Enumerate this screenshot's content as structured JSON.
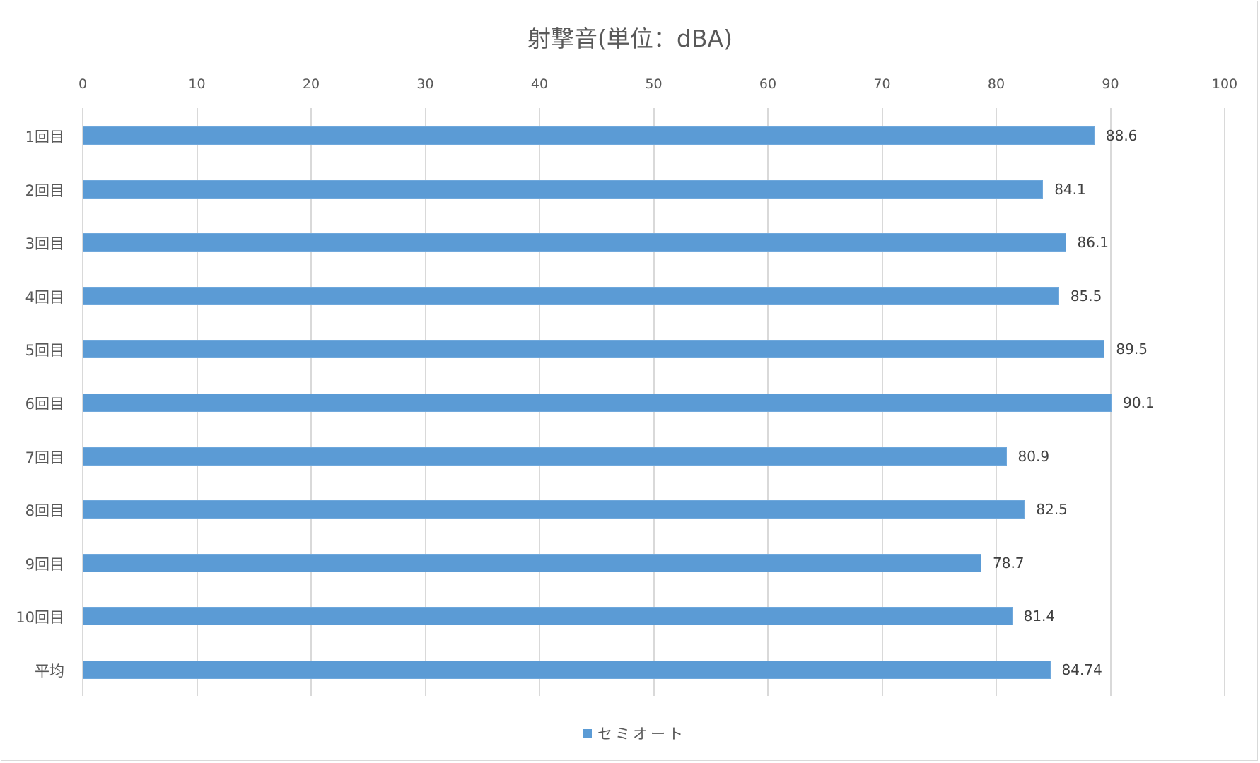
{
  "chart_data": {
    "type": "bar",
    "orientation": "horizontal",
    "title": "射撃音(単位：dBA)",
    "xlabel": "",
    "ylabel": "",
    "xlim": [
      0,
      100
    ],
    "x_ticks": [
      "0",
      "10",
      "20",
      "30",
      "40",
      "50",
      "60",
      "70",
      "80",
      "90",
      "100"
    ],
    "categories": [
      "1回目",
      "2回目",
      "3回目",
      "4回目",
      "5回目",
      "6回目",
      "7回目",
      "8回目",
      "9回目",
      "10回目",
      "平均"
    ],
    "series": [
      {
        "name": "セミオート",
        "color": "#5b9bd5",
        "values": [
          88.6,
          84.1,
          86.1,
          85.5,
          89.5,
          90.1,
          80.9,
          82.5,
          78.7,
          81.4,
          84.74
        ],
        "labels": [
          "88.6",
          "84.1",
          "86.1",
          "85.5",
          "89.5",
          "90.1",
          "80.9",
          "82.5",
          "78.7",
          "81.4",
          "84.74"
        ]
      }
    ],
    "grid": true,
    "legend_position": "bottom",
    "axis_position": "top"
  }
}
